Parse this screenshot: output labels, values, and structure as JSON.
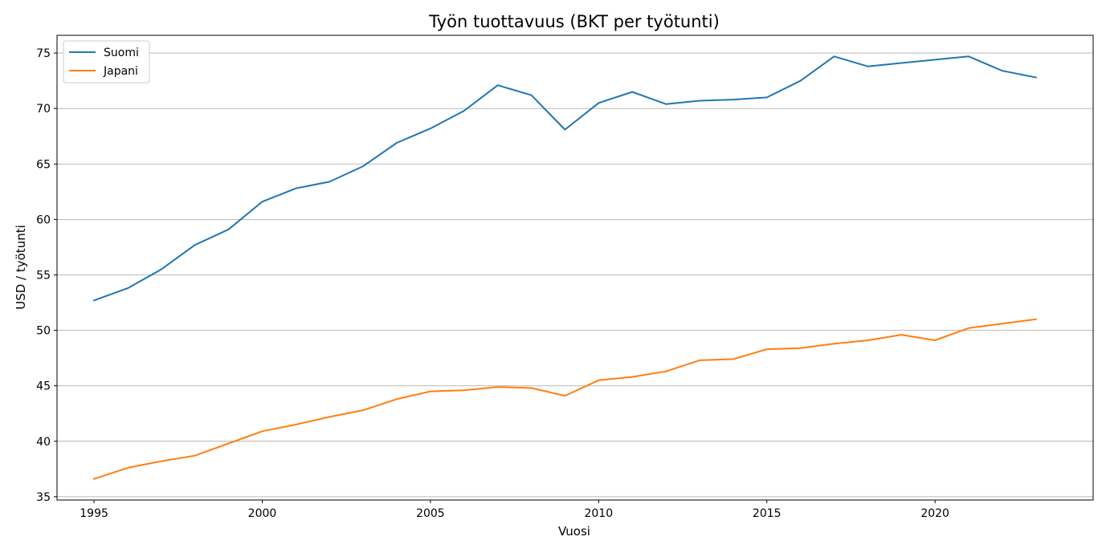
{
  "chart_data": {
    "type": "line",
    "title": "Työn tuottavuus (BKT per työtunti)",
    "xlabel": "Vuosi",
    "ylabel": "USD / työtunti",
    "xlim": [
      1993.9,
      2024.7
    ],
    "ylim": [
      34.7,
      76.6
    ],
    "xticks": [
      1995,
      2000,
      2005,
      2010,
      2015,
      2020
    ],
    "yticks": [
      35,
      40,
      45,
      50,
      55,
      60,
      65,
      70,
      75
    ],
    "grid": "y",
    "legend_position": "top-left",
    "x": [
      1995,
      1996,
      1997,
      1998,
      1999,
      2000,
      2001,
      2002,
      2003,
      2004,
      2005,
      2006,
      2007,
      2008,
      2009,
      2010,
      2011,
      2012,
      2013,
      2014,
      2015,
      2016,
      2017,
      2018,
      2019,
      2020,
      2021,
      2022,
      2023
    ],
    "series": [
      {
        "name": "Suomi",
        "color": "#1f77b4",
        "values": [
          52.7,
          53.8,
          55.5,
          57.7,
          59.1,
          61.6,
          62.8,
          63.4,
          64.8,
          66.9,
          68.2,
          69.8,
          72.1,
          71.2,
          68.1,
          70.5,
          71.5,
          70.4,
          70.7,
          70.8,
          71.0,
          72.5,
          74.7,
          73.8,
          74.1,
          74.4,
          74.7,
          73.4,
          72.8
        ]
      },
      {
        "name": "Japani",
        "color": "#ff7f0e",
        "values": [
          36.6,
          37.6,
          38.2,
          38.7,
          39.8,
          40.9,
          41.5,
          42.2,
          42.8,
          43.8,
          44.5,
          44.6,
          44.9,
          44.8,
          44.1,
          45.5,
          45.8,
          46.3,
          47.3,
          47.4,
          48.3,
          48.4,
          48.8,
          49.1,
          49.6,
          49.1,
          50.2,
          50.6,
          51.0
        ]
      }
    ]
  }
}
